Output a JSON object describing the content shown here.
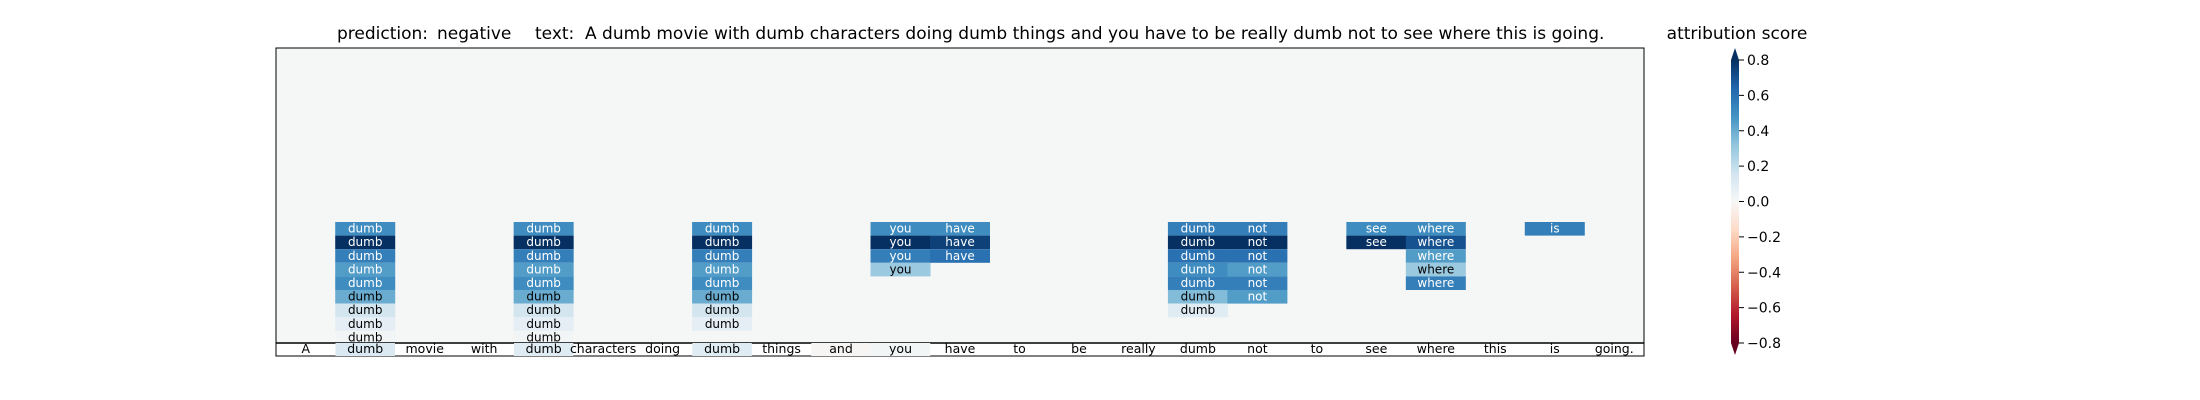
{
  "title": {
    "prediction_label": "prediction:",
    "prediction_value": "negative",
    "text_label": "text:",
    "text_value": "A dumb movie with dumb characters doing dumb things and you have to be really dumb not to see where this is going."
  },
  "colorbar": {
    "title": "attribution score",
    "ticks": [
      0.8,
      0.6,
      0.4,
      0.2,
      0.0,
      -0.2,
      -0.4,
      -0.6,
      -0.8
    ],
    "tick_labels": [
      "0.8",
      "0.6",
      "0.4",
      "0.2",
      "0.0",
      "−0.2",
      "−0.4",
      "−0.6",
      "−0.8"
    ],
    "range": [
      -0.8,
      0.8
    ],
    "colormap": "RdBu"
  },
  "chart_data": {
    "type": "heatmap",
    "title": "prediction:  negative     text:  A dumb movie with dumb characters doing dumb things and you have to be really dumb not to see where this is going.",
    "tokens": [
      "A",
      "dumb",
      "movie",
      "with",
      "dumb",
      "characters",
      "doing",
      "dumb",
      "things",
      "and",
      "you",
      "have",
      "to",
      "be",
      "really",
      "dumb",
      "not",
      "to",
      "see",
      "where",
      "this",
      "is",
      "going."
    ],
    "token_scores": [
      0.0,
      0.12,
      0.0,
      0.0,
      0.1,
      0.0,
      0.0,
      0.1,
      0.0,
      -0.01,
      0.02,
      0.0,
      0.0,
      0.0,
      0.0,
      0.0,
      0.0,
      0.0,
      0.0,
      0.0,
      0.0,
      0.0,
      0.0
    ],
    "columns": [
      {
        "token_index": 1,
        "word": "dumb",
        "scores": [
          0.5,
          0.8,
          0.55,
          0.45,
          0.5,
          0.4,
          0.15,
          0.08,
          0.02
        ]
      },
      {
        "token_index": 4,
        "word": "dumb",
        "scores": [
          0.5,
          0.8,
          0.55,
          0.45,
          0.5,
          0.4,
          0.15,
          0.08,
          0.02
        ]
      },
      {
        "token_index": 7,
        "word": "dumb",
        "scores": [
          0.5,
          0.8,
          0.55,
          0.45,
          0.5,
          0.4,
          0.15,
          0.08
        ]
      },
      {
        "token_index": 10,
        "word": "you",
        "scores": [
          0.5,
          0.8,
          0.55,
          0.3
        ]
      },
      {
        "token_index": 11,
        "word": "have",
        "scores": [
          0.5,
          0.75,
          0.6
        ]
      },
      {
        "token_index": 15,
        "word": "dumb",
        "scores": [
          0.55,
          0.8,
          0.6,
          0.5,
          0.55,
          0.35,
          0.1
        ]
      },
      {
        "token_index": 16,
        "word": "not",
        "scores": [
          0.55,
          0.8,
          0.6,
          0.45,
          0.55,
          0.45
        ]
      },
      {
        "token_index": 18,
        "word": "see",
        "scores": [
          0.5,
          0.8
        ]
      },
      {
        "token_index": 19,
        "word": "where",
        "scores": [
          0.5,
          0.7,
          0.45,
          0.3,
          0.55
        ]
      },
      {
        "token_index": 21,
        "word": "is",
        "scores": [
          0.55
        ]
      }
    ],
    "colorbar_range": [
      -0.8,
      0.8
    ],
    "colorbar_label": "attribution score"
  }
}
